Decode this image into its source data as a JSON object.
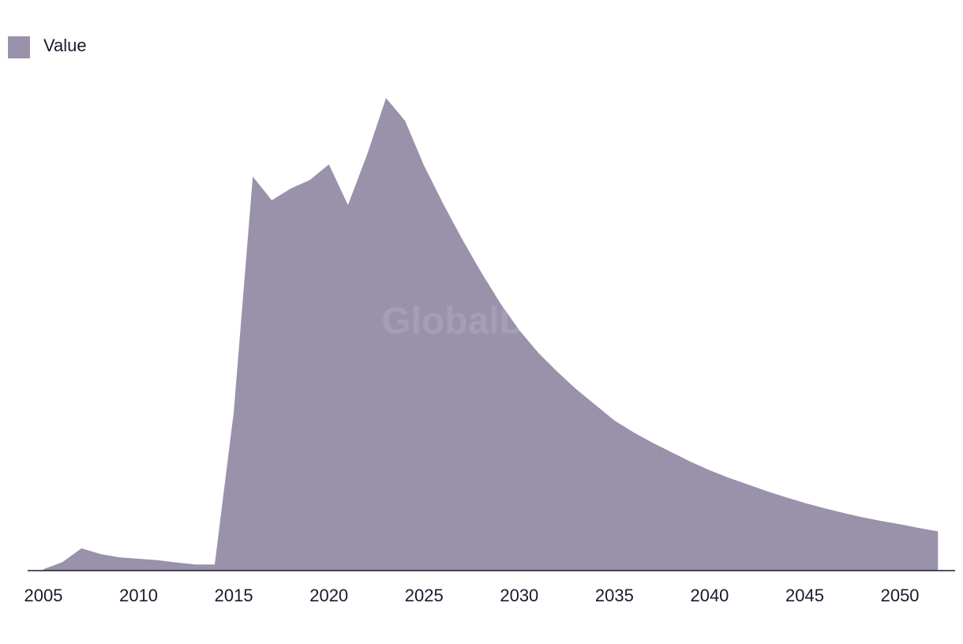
{
  "chart_data": {
    "type": "area",
    "watermark": "GlobalData",
    "x": [
      2005,
      2006,
      2007,
      2008,
      2009,
      2010,
      2011,
      2012,
      2013,
      2014,
      2015,
      2016,
      2017,
      2018,
      2019,
      2020,
      2021,
      2022,
      2023,
      2024,
      2025,
      2026,
      2027,
      2028,
      2029,
      2030,
      2031,
      2032,
      2033,
      2034,
      2035,
      2036,
      2037,
      2038,
      2039,
      2040,
      2041,
      2042,
      2043,
      2044,
      2045,
      2046,
      2047,
      2048,
      2049,
      2050,
      2051,
      2052
    ],
    "series": [
      {
        "name": "Value",
        "color": "#9a91aa",
        "values": [
          0.3,
          1.8,
          4.7,
          3.5,
          2.8,
          2.5,
          2.2,
          1.7,
          1.3,
          1.3,
          33.5,
          83.2,
          78.2,
          80.7,
          82.5,
          85.8,
          77.2,
          87.8,
          99.8,
          95,
          85.5,
          77.5,
          70,
          63,
          56.5,
          50.8,
          46,
          42,
          38.3,
          35,
          31.7,
          29.2,
          27,
          25,
          23,
          21.2,
          19.6,
          18.2,
          16.8,
          15.5,
          14.3,
          13.2,
          12.2,
          11.3,
          10.5,
          9.8,
          9,
          8.3
        ]
      }
    ],
    "xlim": [
      2004.17,
      2052.9
    ],
    "xticks": [
      2005,
      2010,
      2015,
      2020,
      2025,
      2030,
      2035,
      2040,
      2045,
      2050
    ],
    "ylim": [
      0,
      100
    ]
  }
}
